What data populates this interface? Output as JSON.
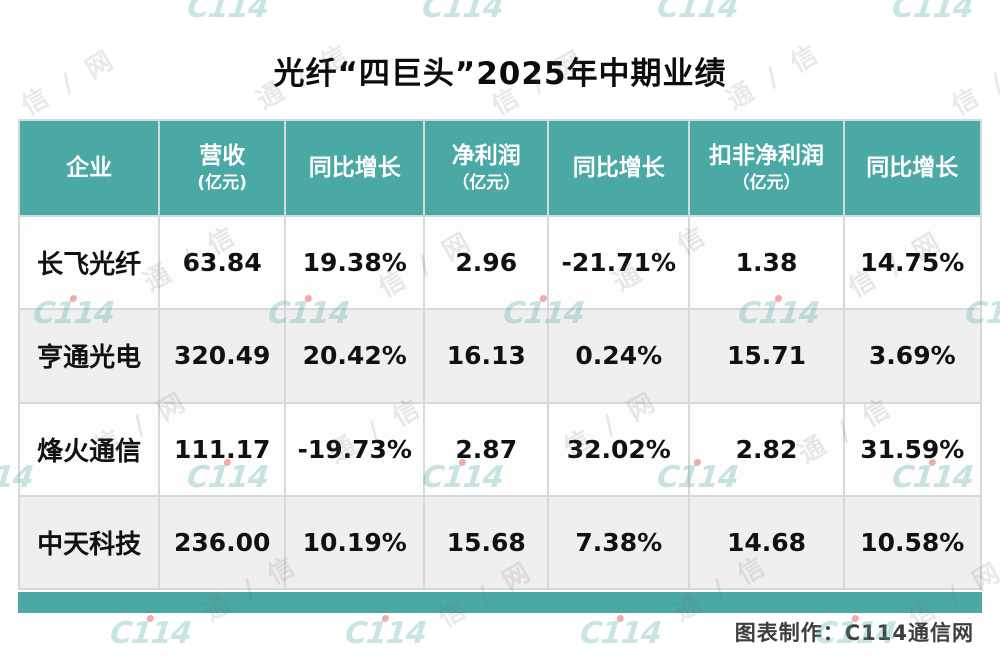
{
  "title": "光纤“四巨头”2025年中期业绩",
  "header": {
    "cells": [
      {
        "label": "企业",
        "sub": ""
      },
      {
        "label": "营收",
        "sub": "(亿元)"
      },
      {
        "label": "同比增长",
        "sub": ""
      },
      {
        "label": "净利润",
        "sub": "（亿元）"
      },
      {
        "label": "同比增长",
        "sub": ""
      },
      {
        "label": "扣非净利润",
        "sub": "（亿元）"
      },
      {
        "label": "同比增长",
        "sub": ""
      }
    ]
  },
  "chart_data": {
    "type": "table",
    "title": "光纤“四巨头”2025年中期业绩",
    "columns": [
      "企业",
      "营收(亿元)",
      "同比增长",
      "净利润（亿元）",
      "同比增长",
      "扣非净利润（亿元）",
      "同比增长"
    ],
    "rows": [
      [
        "长飞光纤",
        "63.84",
        "19.38%",
        "2.96",
        "-21.71%",
        "1.38",
        "14.75%"
      ],
      [
        "亨通光电",
        "320.49",
        "20.42%",
        "16.13",
        "0.24%",
        "15.71",
        "3.69%"
      ],
      [
        "烽火通信",
        "111.17",
        "-19.73%",
        "2.87",
        "32.02%",
        "2.82",
        "31.59%"
      ],
      [
        "中天科技",
        "236.00",
        "10.19%",
        "15.68",
        "7.38%",
        "14.68",
        "10.58%"
      ]
    ]
  },
  "footer": {
    "credit": "图表制作：C114通信网"
  },
  "watermark": {
    "logo_text": "C114",
    "gray_a": "信 / 网",
    "gray_b": "通 / 信"
  },
  "colors": {
    "header_teal": "#4AA8A5",
    "row_alt_gray": "#EFEFEF",
    "grid_line": "#D8D8D8",
    "text": "#111111",
    "credit_text": "#3E3E3E"
  }
}
